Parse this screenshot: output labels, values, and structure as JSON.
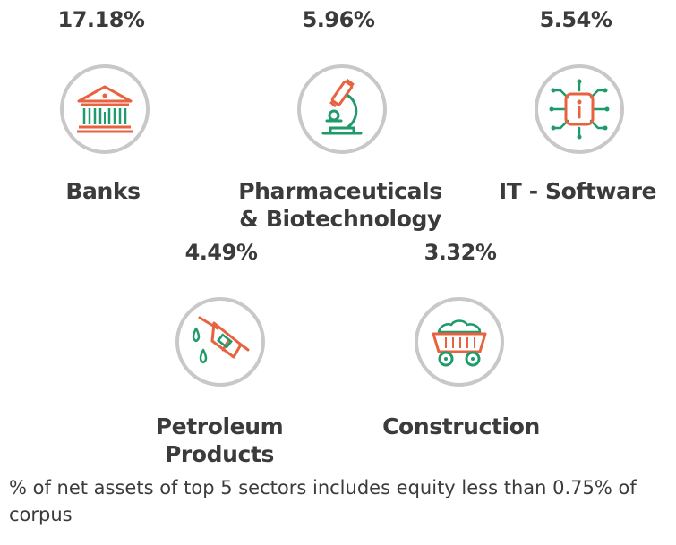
{
  "sectors": [
    {
      "percent": "17.18%",
      "label": "Banks",
      "icon": "bank-icon"
    },
    {
      "percent": "5.96%",
      "label": "Pharmaceuticals\n& Biotechnology",
      "label_line1": "Pharmaceuticals",
      "label_line2": "& Biotechnology",
      "icon": "microscope-icon"
    },
    {
      "percent": "5.54%",
      "label": "IT - Software",
      "icon": "chip-icon"
    },
    {
      "percent": "4.49%",
      "label_line1": "Petroleum",
      "label_line2": "Products",
      "icon": "fuel-nozzle-icon"
    },
    {
      "percent": "3.32%",
      "label": "Construction",
      "icon": "mining-cart-icon"
    }
  ],
  "footnote": "% of net assets of top 5 sectors includes equity less than 0.75% of corpus",
  "colors": {
    "accent_red": "#e8623f",
    "accent_green": "#1f9a6a",
    "circle_border": "#c8c8c8",
    "text": "#3b3b3b"
  }
}
